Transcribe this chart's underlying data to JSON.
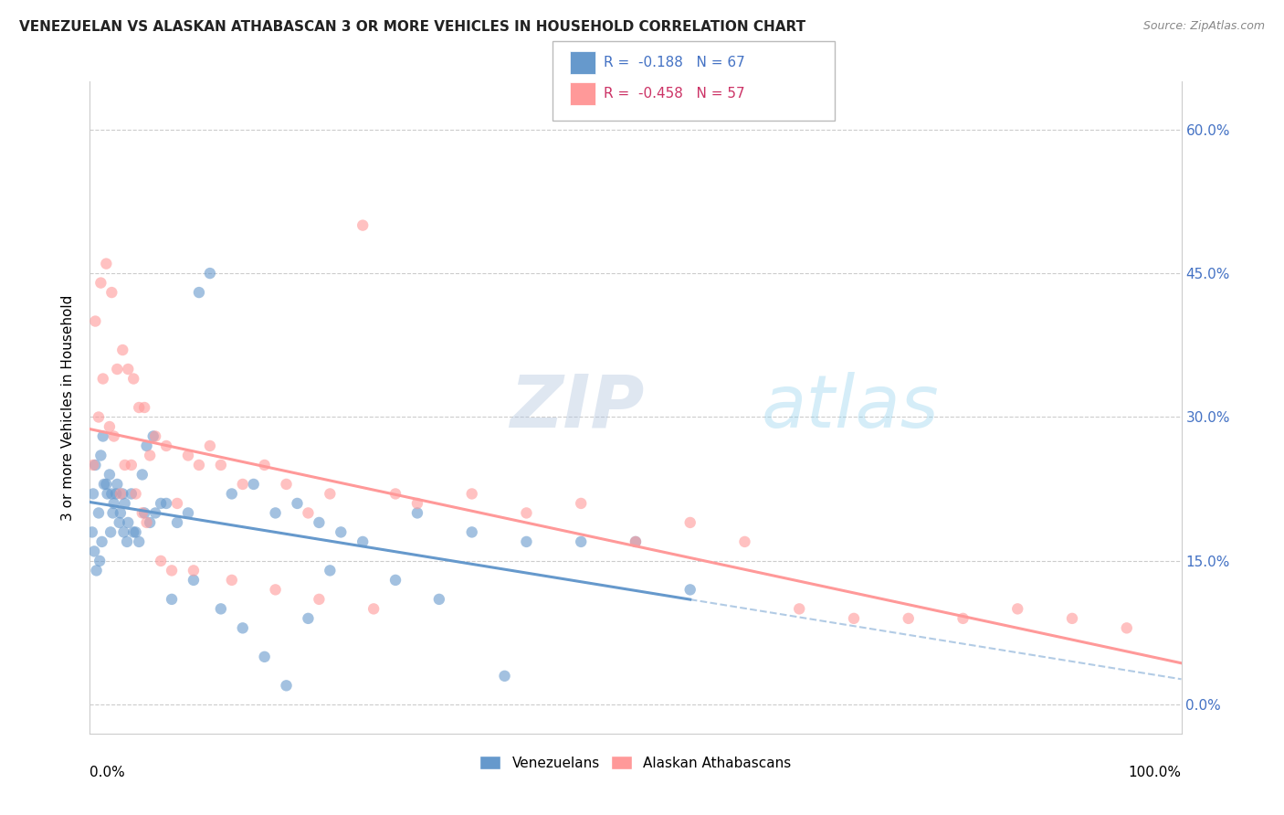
{
  "title": "VENEZUELAN VS ALASKAN ATHABASCAN 3 OR MORE VEHICLES IN HOUSEHOLD CORRELATION CHART",
  "source": "Source: ZipAtlas.com",
  "ylabel": "3 or more Vehicles in Household",
  "ytick_vals": [
    0.0,
    15.0,
    30.0,
    45.0,
    60.0
  ],
  "xlim": [
    0,
    100
  ],
  "ylim": [
    -3,
    65
  ],
  "watermark_zip": "ZIP",
  "watermark_atlas": "atlas",
  "blue_color": "#6699CC",
  "pink_color": "#FF9999",
  "blue_text_color": "#4472C4",
  "pink_text_color": "#CC3366",
  "venezuelan_x": [
    0.3,
    0.5,
    0.8,
    1.0,
    1.2,
    1.5,
    1.8,
    2.0,
    2.2,
    2.5,
    2.8,
    3.0,
    3.2,
    3.5,
    4.0,
    4.5,
    5.0,
    5.5,
    6.0,
    7.0,
    8.0,
    9.0,
    10.0,
    11.0,
    13.0,
    15.0,
    17.0,
    19.0,
    21.0,
    23.0,
    25.0,
    30.0,
    35.0,
    40.0,
    45.0,
    50.0,
    55.0,
    0.2,
    0.4,
    0.6,
    0.9,
    1.1,
    1.3,
    1.6,
    1.9,
    2.1,
    2.4,
    2.7,
    3.1,
    3.4,
    3.8,
    4.2,
    4.8,
    5.2,
    5.8,
    6.5,
    7.5,
    9.5,
    12.0,
    14.0,
    16.0,
    18.0,
    20.0,
    22.0,
    28.0,
    32.0,
    38.0
  ],
  "venezuelan_y": [
    22.0,
    25.0,
    20.0,
    26.0,
    28.0,
    23.0,
    24.0,
    22.0,
    21.0,
    23.0,
    20.0,
    22.0,
    21.0,
    19.0,
    18.0,
    17.0,
    20.0,
    19.0,
    20.0,
    21.0,
    19.0,
    20.0,
    43.0,
    45.0,
    22.0,
    23.0,
    20.0,
    21.0,
    19.0,
    18.0,
    17.0,
    20.0,
    18.0,
    17.0,
    17.0,
    17.0,
    12.0,
    18.0,
    16.0,
    14.0,
    15.0,
    17.0,
    23.0,
    22.0,
    18.0,
    20.0,
    22.0,
    19.0,
    18.0,
    17.0,
    22.0,
    18.0,
    24.0,
    27.0,
    28.0,
    21.0,
    11.0,
    13.0,
    10.0,
    8.0,
    5.0,
    2.0,
    9.0,
    14.0,
    13.0,
    11.0,
    3.0
  ],
  "athabascan_x": [
    0.5,
    1.0,
    1.5,
    2.0,
    2.5,
    3.0,
    3.5,
    4.0,
    4.5,
    5.0,
    5.5,
    6.0,
    7.0,
    8.0,
    9.0,
    10.0,
    11.0,
    12.0,
    14.0,
    16.0,
    18.0,
    20.0,
    22.0,
    25.0,
    28.0,
    30.0,
    35.0,
    40.0,
    45.0,
    50.0,
    55.0,
    60.0,
    65.0,
    70.0,
    75.0,
    80.0,
    85.0,
    90.0,
    95.0,
    0.3,
    0.8,
    1.2,
    1.8,
    2.2,
    2.8,
    3.2,
    3.8,
    4.2,
    4.8,
    5.2,
    6.5,
    7.5,
    9.5,
    13.0,
    17.0,
    21.0,
    26.0
  ],
  "athabascan_y": [
    40.0,
    44.0,
    46.0,
    43.0,
    35.0,
    37.0,
    35.0,
    34.0,
    31.0,
    31.0,
    26.0,
    28.0,
    27.0,
    21.0,
    26.0,
    25.0,
    27.0,
    25.0,
    23.0,
    25.0,
    23.0,
    20.0,
    22.0,
    50.0,
    22.0,
    21.0,
    22.0,
    20.0,
    21.0,
    17.0,
    19.0,
    17.0,
    10.0,
    9.0,
    9.0,
    9.0,
    10.0,
    9.0,
    8.0,
    25.0,
    30.0,
    34.0,
    29.0,
    28.0,
    22.0,
    25.0,
    25.0,
    22.0,
    20.0,
    19.0,
    15.0,
    14.0,
    14.0,
    13.0,
    12.0,
    11.0,
    10.0
  ]
}
